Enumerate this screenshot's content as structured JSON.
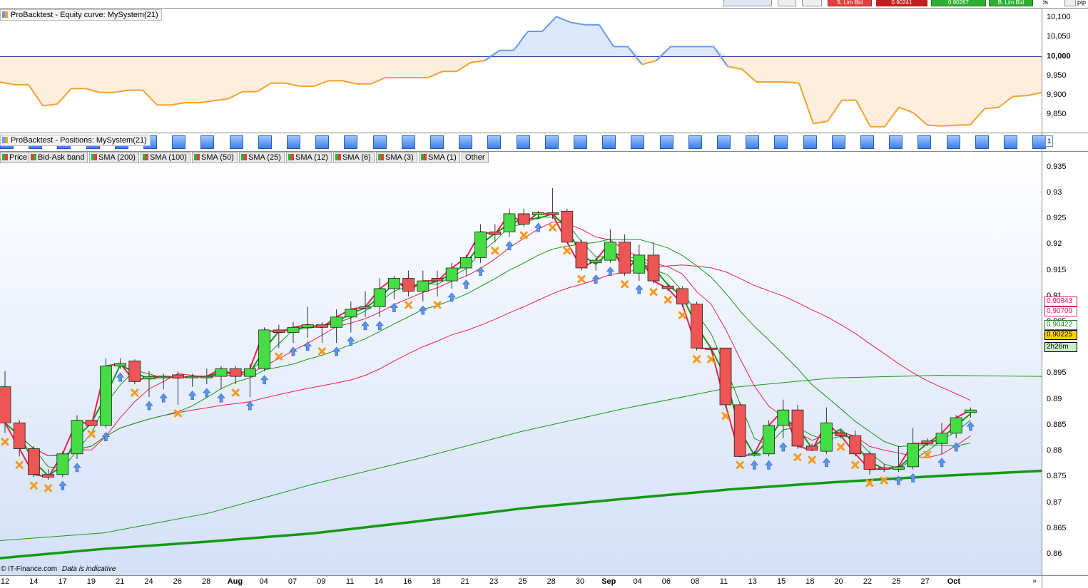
{
  "toolbar": {
    "sell_label": "S. Lim Bid",
    "buy_label": "B. Lim Bid",
    "sell_price": "0.90241",
    "buy_price": "0.90267",
    "qty_label": "ts",
    "unit_label": "pip"
  },
  "equity_panel": {
    "title": "ProBacktest - Equity curve: MySystem(21)",
    "y_ticks": [
      "10,100",
      "10,050",
      "10,000",
      "9,950",
      "9,900",
      "9,850"
    ],
    "baseline": 10000
  },
  "positions_panel": {
    "title": "ProBacktest - Positions: MySystem(21)",
    "marker": "1"
  },
  "legend": [
    {
      "label": "Price",
      "color": "#e04040"
    },
    {
      "label": "Bid-Ask band",
      "color": "#e04040"
    },
    {
      "label": "SMA (200)",
      "color": "#e04040"
    },
    {
      "label": "SMA (100)",
      "color": "#e04040"
    },
    {
      "label": "SMA (50)",
      "color": "#e04040"
    },
    {
      "label": "SMA (25)",
      "color": "#e04040"
    },
    {
      "label": "SMA (12)",
      "color": "#e04040"
    },
    {
      "label": "SMA (6)",
      "color": "#e04040"
    },
    {
      "label": "SMA (3)",
      "color": "#e04040"
    },
    {
      "label": "SMA (1)",
      "color": "#e04040"
    },
    {
      "label": "Other",
      "color": ""
    }
  ],
  "price_axis": {
    "ticks": [
      "0.935",
      "0.93",
      "0.925",
      "0.92",
      "0.915",
      "0.91",
      "0.905",
      "0.9",
      "0.895",
      "0.89",
      "0.885",
      "0.88",
      "0.875",
      "0.87",
      "0.865",
      "0.86"
    ],
    "tags": [
      {
        "text": "0.90843",
        "color": "#d0206a",
        "bg": "#ffffff"
      },
      {
        "text": "0.90709",
        "color": "#d0206a",
        "bg": "#ffffff"
      },
      {
        "text": "0.90422",
        "color": "#208020",
        "bg": "#ffffff"
      },
      {
        "text": "0.90225",
        "color": "#000000",
        "bg": "#ffd000"
      },
      {
        "text": "2h26m",
        "color": "#000000",
        "bg": "#c8f0c8"
      }
    ]
  },
  "x_axis": {
    "labels": [
      "12",
      "14",
      "17",
      "19",
      "21",
      "24",
      "26",
      "28",
      "Aug",
      "04",
      "07",
      "09",
      "11",
      "14",
      "16",
      "18",
      "21",
      "23",
      "25",
      "28",
      "30",
      "Sep",
      "04",
      "06",
      "08",
      "11",
      "13",
      "15",
      "18",
      "20",
      "22",
      "25",
      "27",
      "Oct"
    ],
    "bold": [
      "Aug",
      "Sep",
      "Oct"
    ]
  },
  "footer": {
    "copyright": "© IT-Finance.com",
    "disclaimer": "Data is indicative"
  },
  "colors": {
    "up_candle": "#44dd44",
    "down_candle": "#ee5555",
    "equity_line_up": "#6699ee",
    "equity_line_down": "#f5a030",
    "sma_long": "#119911",
    "sma_red": "#e8204a"
  },
  "chart_data": {
    "type": "candlestick",
    "instrument_hint": "",
    "candles": [
      {
        "o": 0.8925,
        "h": 0.8955,
        "l": 0.8835,
        "c": 0.8855
      },
      {
        "o": 0.8855,
        "h": 0.886,
        "l": 0.879,
        "c": 0.8805
      },
      {
        "o": 0.8805,
        "h": 0.881,
        "l": 0.875,
        "c": 0.8755
      },
      {
        "o": 0.8755,
        "h": 0.8765,
        "l": 0.8745,
        "c": 0.875
      },
      {
        "o": 0.8755,
        "h": 0.88,
        "l": 0.875,
        "c": 0.8795
      },
      {
        "o": 0.8795,
        "h": 0.887,
        "l": 0.8785,
        "c": 0.886
      },
      {
        "o": 0.886,
        "h": 0.886,
        "l": 0.885,
        "c": 0.885
      },
      {
        "o": 0.885,
        "h": 0.898,
        "l": 0.8845,
        "c": 0.8965
      },
      {
        "o": 0.8965,
        "h": 0.898,
        "l": 0.896,
        "c": 0.897
      },
      {
        "o": 0.8975,
        "h": 0.8978,
        "l": 0.893,
        "c": 0.8935
      },
      {
        "o": 0.894,
        "h": 0.8955,
        "l": 0.8905,
        "c": 0.8945
      },
      {
        "o": 0.8945,
        "h": 0.895,
        "l": 0.892,
        "c": 0.8945
      },
      {
        "o": 0.8948,
        "h": 0.8955,
        "l": 0.889,
        "c": 0.8942
      },
      {
        "o": 0.8945,
        "h": 0.895,
        "l": 0.8925,
        "c": 0.8945
      },
      {
        "o": 0.8945,
        "h": 0.896,
        "l": 0.893,
        "c": 0.8945
      },
      {
        "o": 0.8945,
        "h": 0.8965,
        "l": 0.892,
        "c": 0.896
      },
      {
        "o": 0.896,
        "h": 0.8965,
        "l": 0.893,
        "c": 0.8945
      },
      {
        "o": 0.8945,
        "h": 0.897,
        "l": 0.8905,
        "c": 0.896
      },
      {
        "o": 0.896,
        "h": 0.904,
        "l": 0.8955,
        "c": 0.9035
      },
      {
        "o": 0.9035,
        "h": 0.9045,
        "l": 0.9,
        "c": 0.903
      },
      {
        "o": 0.903,
        "h": 0.905,
        "l": 0.901,
        "c": 0.904
      },
      {
        "o": 0.904,
        "h": 0.908,
        "l": 0.902,
        "c": 0.9045
      },
      {
        "o": 0.9045,
        "h": 0.905,
        "l": 0.901,
        "c": 0.904
      },
      {
        "o": 0.904,
        "h": 0.9075,
        "l": 0.901,
        "c": 0.906
      },
      {
        "o": 0.906,
        "h": 0.909,
        "l": 0.903,
        "c": 0.9075
      },
      {
        "o": 0.908,
        "h": 0.911,
        "l": 0.906,
        "c": 0.908
      },
      {
        "o": 0.908,
        "h": 0.9135,
        "l": 0.906,
        "c": 0.9115
      },
      {
        "o": 0.9115,
        "h": 0.914,
        "l": 0.9095,
        "c": 0.9135
      },
      {
        "o": 0.9135,
        "h": 0.915,
        "l": 0.91,
        "c": 0.911
      },
      {
        "o": 0.911,
        "h": 0.915,
        "l": 0.909,
        "c": 0.913
      },
      {
        "o": 0.9135,
        "h": 0.915,
        "l": 0.91,
        "c": 0.913
      },
      {
        "o": 0.913,
        "h": 0.9165,
        "l": 0.9115,
        "c": 0.9155
      },
      {
        "o": 0.9155,
        "h": 0.918,
        "l": 0.914,
        "c": 0.9175
      },
      {
        "o": 0.9175,
        "h": 0.924,
        "l": 0.9165,
        "c": 0.9225
      },
      {
        "o": 0.9225,
        "h": 0.924,
        "l": 0.9205,
        "c": 0.922
      },
      {
        "o": 0.9225,
        "h": 0.927,
        "l": 0.9215,
        "c": 0.926
      },
      {
        "o": 0.926,
        "h": 0.927,
        "l": 0.9235,
        "c": 0.924
      },
      {
        "o": 0.9258,
        "h": 0.9265,
        "l": 0.925,
        "c": 0.9262
      },
      {
        "o": 0.9262,
        "h": 0.931,
        "l": 0.925,
        "c": 0.9258
      },
      {
        "o": 0.9265,
        "h": 0.927,
        "l": 0.9205,
        "c": 0.9205
      },
      {
        "o": 0.9205,
        "h": 0.921,
        "l": 0.915,
        "c": 0.9155
      },
      {
        "o": 0.9165,
        "h": 0.9175,
        "l": 0.915,
        "c": 0.917
      },
      {
        "o": 0.917,
        "h": 0.923,
        "l": 0.9165,
        "c": 0.9205
      },
      {
        "o": 0.9205,
        "h": 0.922,
        "l": 0.914,
        "c": 0.9145
      },
      {
        "o": 0.9145,
        "h": 0.92,
        "l": 0.913,
        "c": 0.918
      },
      {
        "o": 0.918,
        "h": 0.9205,
        "l": 0.9125,
        "c": 0.913
      },
      {
        "o": 0.912,
        "h": 0.9125,
        "l": 0.911,
        "c": 0.9115
      },
      {
        "o": 0.9115,
        "h": 0.912,
        "l": 0.908,
        "c": 0.9085
      },
      {
        "o": 0.9085,
        "h": 0.909,
        "l": 0.8995,
        "c": 0.9
      },
      {
        "o": 0.9,
        "h": 0.9,
        "l": 0.8995,
        "c": 0.8998
      },
      {
        "o": 0.9,
        "h": 0.9,
        "l": 0.8885,
        "c": 0.889
      },
      {
        "o": 0.889,
        "h": 0.8895,
        "l": 0.879,
        "c": 0.879
      },
      {
        "o": 0.8795,
        "h": 0.88,
        "l": 0.879,
        "c": 0.8795
      },
      {
        "o": 0.8795,
        "h": 0.886,
        "l": 0.879,
        "c": 0.885
      },
      {
        "o": 0.885,
        "h": 0.89,
        "l": 0.8825,
        "c": 0.888
      },
      {
        "o": 0.888,
        "h": 0.889,
        "l": 0.8805,
        "c": 0.881
      },
      {
        "o": 0.881,
        "h": 0.8815,
        "l": 0.88,
        "c": 0.8802
      },
      {
        "o": 0.88,
        "h": 0.8885,
        "l": 0.8795,
        "c": 0.8855
      },
      {
        "o": 0.8835,
        "h": 0.884,
        "l": 0.8825,
        "c": 0.883
      },
      {
        "o": 0.883,
        "h": 0.884,
        "l": 0.879,
        "c": 0.8795
      },
      {
        "o": 0.8795,
        "h": 0.88,
        "l": 0.8755,
        "c": 0.8765
      },
      {
        "o": 0.8768,
        "h": 0.8775,
        "l": 0.876,
        "c": 0.8766
      },
      {
        "o": 0.8765,
        "h": 0.881,
        "l": 0.876,
        "c": 0.877
      },
      {
        "o": 0.877,
        "h": 0.8845,
        "l": 0.8765,
        "c": 0.8815
      },
      {
        "o": 0.882,
        "h": 0.8825,
        "l": 0.881,
        "c": 0.8815
      },
      {
        "o": 0.8815,
        "h": 0.8855,
        "l": 0.8795,
        "c": 0.8835
      },
      {
        "o": 0.8835,
        "h": 0.887,
        "l": 0.8825,
        "c": 0.8865
      },
      {
        "o": 0.8875,
        "h": 0.8885,
        "l": 0.8865,
        "c": 0.888
      }
    ],
    "ylim": [
      0.856,
      0.938
    ],
    "equity": {
      "values": [
        9935,
        9928,
        9928,
        9874,
        9878,
        9918,
        9918,
        9908,
        9908,
        9914,
        9914,
        9876,
        9876,
        9882,
        9882,
        9887,
        9892,
        9910,
        9910,
        9932,
        9932,
        9924,
        9924,
        9938,
        9938,
        9930,
        9930,
        9946,
        9946,
        9946,
        9946,
        9962,
        9962,
        9985,
        9990,
        10016,
        10016,
        10065,
        10065,
        10103,
        10088,
        10082,
        10082,
        10026,
        10026,
        9980,
        9990,
        10026,
        10026,
        10026,
        10026,
        9975,
        9968,
        9935,
        9935,
        9935,
        9932,
        9828,
        9834,
        9888,
        9888,
        9820,
        9820,
        9870,
        9856,
        9824,
        9822,
        9824,
        9825,
        9866,
        9870,
        9898,
        9900,
        9908
      ],
      "ylim": [
        9805,
        10120
      ]
    },
    "sma_200": [
      0.8593,
      0.8611,
      0.8625,
      0.8641,
      0.8664,
      0.8689,
      0.8708,
      0.8726,
      0.874,
      0.8752,
      0.8762
    ],
    "sma_100": [
      0.8627,
      0.8642,
      0.868,
      0.8736,
      0.8785,
      0.8838,
      0.8883,
      0.8923,
      0.8942,
      0.8947,
      0.8945
    ]
  }
}
